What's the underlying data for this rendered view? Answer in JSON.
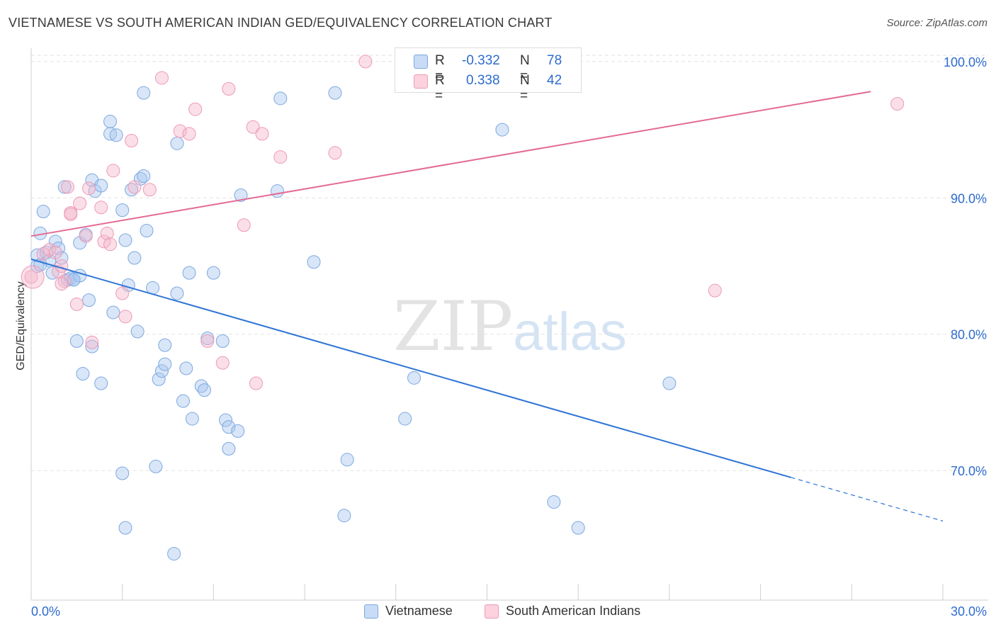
{
  "title": "VIETNAMESE VS SOUTH AMERICAN INDIAN GED/EQUIVALENCY CORRELATION CHART",
  "source": "Source: ZipAtlas.com",
  "watermark": {
    "zip": "ZIP",
    "atlas": "atlas"
  },
  "stats": {
    "r_label": "R =",
    "n_label": "N =",
    "rows": [
      {
        "r": "-0.332",
        "n": "78",
        "color": "#a9c8f0"
      },
      {
        "r": "0.338",
        "n": "42",
        "color": "#f5b8cb"
      }
    ]
  },
  "legend": [
    {
      "label": "Vietnamese",
      "color": "#a9c8f0"
    },
    {
      "label": "South American Indians",
      "color": "#f5b8cb"
    }
  ],
  "chart_data": {
    "type": "scatter",
    "ylabel": "GED/Equivalency",
    "xlim": [
      0,
      30
    ],
    "ylim": [
      60.5,
      101.5
    ],
    "x_tick_labels": [
      "0.0%",
      "30.0%"
    ],
    "y_ticks": [
      70,
      80,
      90,
      100
    ],
    "y_tick_labels": [
      "70.0%",
      "80.0%",
      "90.0%",
      "100.0%"
    ],
    "grid": "horizontal dashed",
    "colors": {
      "vietnamese": "#2e74d6",
      "sai": "#e36a94"
    },
    "series": [
      {
        "name": "Vietnamese",
        "trend": {
          "x0": 0,
          "y0": 85.5,
          "x1": 25,
          "y1": 69.5,
          "dashed_to_x": 30,
          "dashed_to_y": 66.3
        },
        "points": [
          [
            0.2,
            85.8
          ],
          [
            0.2,
            85.0
          ],
          [
            0.3,
            87.4
          ],
          [
            0.4,
            89.0
          ],
          [
            0.5,
            86.0
          ],
          [
            0.6,
            85.4
          ],
          [
            0.7,
            84.5
          ],
          [
            0.8,
            86.8
          ],
          [
            0.9,
            86.3
          ],
          [
            1.0,
            85.6
          ],
          [
            1.1,
            90.8
          ],
          [
            1.2,
            84.0
          ],
          [
            1.3,
            84.1
          ],
          [
            1.4,
            84.0
          ],
          [
            1.6,
            84.3
          ],
          [
            1.6,
            86.7
          ],
          [
            1.8,
            87.3
          ],
          [
            1.9,
            82.5
          ],
          [
            2.0,
            91.3
          ],
          [
            2.1,
            90.5
          ],
          [
            2.3,
            90.9
          ],
          [
            2.6,
            94.7
          ],
          [
            2.6,
            95.6
          ],
          [
            2.7,
            81.6
          ],
          [
            2.8,
            94.6
          ],
          [
            3.0,
            69.8
          ],
          [
            3.1,
            65.8
          ],
          [
            3.0,
            89.1
          ],
          [
            3.1,
            86.9
          ],
          [
            3.2,
            83.6
          ],
          [
            3.3,
            90.6
          ],
          [
            3.4,
            85.6
          ],
          [
            3.5,
            80.2
          ],
          [
            3.6,
            91.4
          ],
          [
            3.7,
            91.6
          ],
          [
            3.7,
            97.7
          ],
          [
            3.8,
            87.6
          ],
          [
            4.0,
            83.4
          ],
          [
            4.1,
            70.3
          ],
          [
            4.2,
            76.7
          ],
          [
            4.3,
            77.3
          ],
          [
            4.4,
            79.2
          ],
          [
            4.4,
            77.8
          ],
          [
            4.7,
            63.9
          ],
          [
            4.8,
            83.0
          ],
          [
            4.8,
            94.0
          ],
          [
            5.0,
            75.1
          ],
          [
            5.1,
            77.5
          ],
          [
            5.2,
            84.5
          ],
          [
            5.3,
            73.8
          ],
          [
            5.6,
            76.2
          ],
          [
            5.7,
            75.9
          ],
          [
            5.8,
            79.7
          ],
          [
            6.0,
            84.5
          ],
          [
            6.3,
            79.5
          ],
          [
            6.4,
            73.7
          ],
          [
            6.5,
            71.6
          ],
          [
            6.5,
            73.2
          ],
          [
            6.8,
            72.9
          ],
          [
            6.9,
            90.2
          ],
          [
            8.1,
            90.5
          ],
          [
            8.2,
            97.3
          ],
          [
            9.3,
            85.3
          ],
          [
            10.0,
            97.7
          ],
          [
            10.3,
            66.7
          ],
          [
            10.4,
            70.8
          ],
          [
            12.3,
            73.8
          ],
          [
            12.6,
            76.8
          ],
          [
            15.5,
            95.0
          ],
          [
            17.2,
            67.7
          ],
          [
            18.0,
            65.8
          ],
          [
            21.0,
            76.4
          ],
          [
            0.3,
            85.1
          ],
          [
            1.5,
            79.5
          ],
          [
            2.0,
            79.1
          ],
          [
            1.7,
            77.1
          ],
          [
            2.3,
            76.4
          ],
          [
            1.4,
            84.0
          ]
        ]
      },
      {
        "name": "South American Indians",
        "trend": {
          "x0": 0,
          "y0": 87.2,
          "x1": 27.0,
          "y1": 97.8
        },
        "points": [
          [
            0.0,
            84.2
          ],
          [
            0.4,
            85.9
          ],
          [
            0.6,
            86.2
          ],
          [
            0.8,
            86.0
          ],
          [
            0.9,
            84.6
          ],
          [
            1.0,
            85.0
          ],
          [
            1.1,
            83.9
          ],
          [
            1.2,
            90.8
          ],
          [
            1.3,
            88.9
          ],
          [
            1.3,
            88.8
          ],
          [
            1.5,
            82.2
          ],
          [
            1.6,
            89.6
          ],
          [
            1.8,
            87.2
          ],
          [
            1.9,
            90.7
          ],
          [
            2.0,
            79.4
          ],
          [
            2.3,
            89.3
          ],
          [
            2.4,
            86.8
          ],
          [
            2.5,
            87.4
          ],
          [
            2.6,
            86.6
          ],
          [
            2.7,
            92.0
          ],
          [
            3.0,
            83.0
          ],
          [
            3.1,
            81.3
          ],
          [
            3.3,
            94.2
          ],
          [
            3.4,
            90.8
          ],
          [
            3.9,
            90.6
          ],
          [
            4.3,
            98.8
          ],
          [
            4.9,
            94.9
          ],
          [
            5.2,
            94.7
          ],
          [
            5.4,
            96.5
          ],
          [
            5.8,
            79.5
          ],
          [
            6.3,
            77.9
          ],
          [
            6.5,
            98.0
          ],
          [
            7.0,
            88.0
          ],
          [
            7.3,
            95.2
          ],
          [
            7.4,
            76.4
          ],
          [
            7.6,
            94.7
          ],
          [
            8.2,
            93.0
          ],
          [
            10.0,
            93.3
          ],
          [
            11.0,
            100.0
          ],
          [
            22.5,
            83.2
          ],
          [
            28.5,
            96.9
          ],
          [
            1.0,
            83.7
          ]
        ]
      }
    ]
  }
}
